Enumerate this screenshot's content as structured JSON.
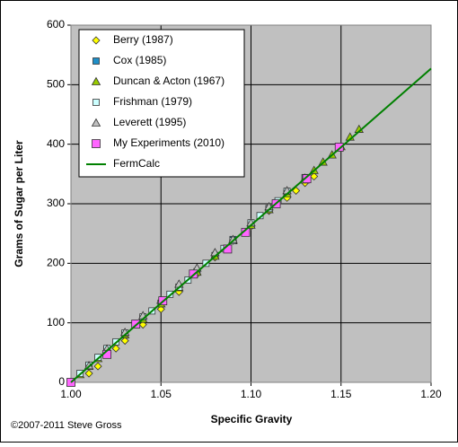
{
  "chart_data": {
    "type": "scatter",
    "x_label": "Specific Gravity",
    "y_label": "Grams of Sugar per Liter",
    "credit": "©2007-2011 Steve Gross",
    "xlim": [
      1.0,
      1.2
    ],
    "ylim": [
      0,
      600
    ],
    "xticks": [
      {
        "value": 1.0,
        "label": "1.00"
      },
      {
        "value": 1.05,
        "label": "1.05"
      },
      {
        "value": 1.1,
        "label": "1.10"
      },
      {
        "value": 1.15,
        "label": "1.15"
      },
      {
        "value": 1.2,
        "label": "1.20"
      }
    ],
    "yticks": [
      0,
      100,
      200,
      300,
      400,
      500,
      600
    ],
    "grid": true,
    "legend": "top-left",
    "background": "#c0c0c0",
    "series": [
      {
        "name": "Berry (1987)",
        "color": "#ffff00",
        "marker": "diamond",
        "x": [
          1.01,
          1.015,
          1.025,
          1.03,
          1.04,
          1.05,
          1.06,
          1.07,
          1.08,
          1.09,
          1.1,
          1.11,
          1.12,
          1.125,
          1.13,
          1.135
        ],
        "values": [
          15,
          27,
          57,
          70,
          97,
          123,
          152,
          182,
          210,
          238,
          262,
          288,
          310,
          322,
          335,
          346
        ]
      },
      {
        "name": "Cox (1985)",
        "color": "#1f8fc8",
        "marker": "square",
        "x": [
          1.0,
          1.01,
          1.02,
          1.03,
          1.04,
          1.05,
          1.06,
          1.07,
          1.08,
          1.09,
          1.1,
          1.11,
          1.12,
          1.13
        ],
        "values": [
          0,
          27,
          54,
          80,
          107,
          133,
          160,
          186,
          213,
          240,
          266,
          292,
          318,
          344
        ]
      },
      {
        "name": "Duncan & Acton (1967)",
        "color": "#99cc00",
        "marker": "triangle",
        "x": [
          1.005,
          1.01,
          1.015,
          1.02,
          1.03,
          1.04,
          1.05,
          1.06,
          1.07,
          1.08,
          1.09,
          1.1,
          1.11,
          1.12,
          1.13,
          1.135,
          1.14,
          1.145,
          1.15,
          1.155,
          1.16
        ],
        "values": [
          13,
          27,
          40,
          54,
          80,
          106,
          132,
          159,
          185,
          212,
          238,
          264,
          290,
          317,
          343,
          356,
          370,
          382,
          396,
          412,
          425
        ]
      },
      {
        "name": "Frishman (1979)",
        "color": "#ccffff",
        "marker": "square",
        "x": [
          1.0,
          1.005,
          1.01,
          1.015,
          1.02,
          1.025,
          1.03,
          1.04,
          1.045,
          1.055,
          1.06,
          1.065,
          1.075,
          1.085,
          1.09,
          1.1,
          1.105,
          1.11,
          1.115,
          1.12
        ],
        "values": [
          0,
          15,
          29,
          42,
          57,
          68,
          83,
          110,
          120,
          148,
          160,
          172,
          200,
          225,
          238,
          268,
          280,
          292,
          305,
          321
        ]
      },
      {
        "name": "Leverett (1995)",
        "color": "#c0c0c0",
        "marker": "triangle",
        "x": [
          1.0,
          1.01,
          1.02,
          1.03,
          1.04,
          1.05,
          1.06,
          1.07,
          1.08,
          1.09,
          1.1,
          1.11,
          1.12,
          1.13
        ],
        "values": [
          0,
          28,
          56,
          84,
          112,
          138,
          165,
          192,
          218,
          240,
          268,
          295,
          322,
          340
        ]
      },
      {
        "name": "My Experiments (2010)",
        "color": "#ff66ff",
        "marker": "bigsquare",
        "x": [
          1.0,
          1.02,
          1.036,
          1.051,
          1.068,
          1.087,
          1.097,
          1.114,
          1.131,
          1.149
        ],
        "values": [
          0,
          47,
          98,
          137,
          182,
          224,
          252,
          300,
          342,
          395
        ]
      },
      {
        "name": "FermCalc",
        "color": "#008000",
        "marker": "line",
        "x": [
          1.0,
          1.05,
          1.1,
          1.15,
          1.2
        ],
        "values": [
          0,
          133,
          264,
          395,
          527
        ]
      }
    ]
  }
}
